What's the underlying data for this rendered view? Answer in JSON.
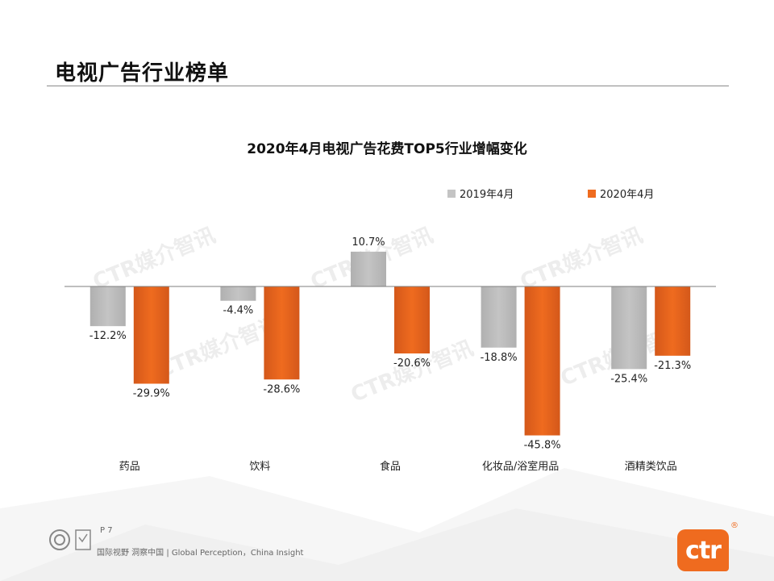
{
  "page": {
    "title": "电视广告行业榜单",
    "page_number": "P 7",
    "footer": "国际视野  洞察中国 |  Global Perception，China Insight",
    "watermark": "CTR媒介智讯",
    "logo_text": "ctr",
    "logo_reg": "®"
  },
  "colors": {
    "series_2019": "#c4c4c4",
    "series_2020": "#ef6b1f",
    "baseline": "#7f7f7f"
  },
  "chart_data": {
    "type": "bar",
    "title": "2020年4月电视广告花费TOP5行业增幅变化",
    "categories": [
      "药品",
      "饮料",
      "食品",
      "化妆品/浴室用品",
      "酒精类饮品"
    ],
    "series": [
      {
        "name": "2019年4月",
        "values": [
          -12.2,
          -4.4,
          10.7,
          -18.8,
          -25.4
        ],
        "labels": [
          "-12.2%",
          "-4.4%",
          "10.7%",
          "-18.8%",
          "-25.4%"
        ]
      },
      {
        "name": "2020年4月",
        "values": [
          -29.9,
          -28.6,
          -20.6,
          -45.8,
          -21.3
        ],
        "labels": [
          "-29.9%",
          "-28.6%",
          "-20.6%",
          "-45.8%",
          "-21.3%"
        ]
      }
    ],
    "xlabel": "",
    "ylabel": "",
    "ylim": [
      -50,
      15
    ],
    "grid": false,
    "legend_position": "top-right"
  }
}
